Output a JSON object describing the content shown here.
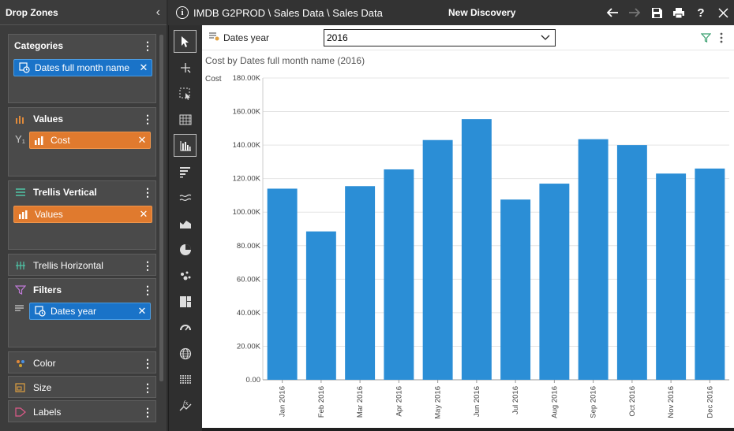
{
  "drop_zones": {
    "header": "Drop Zones",
    "categories": {
      "title": "Categories",
      "chip": "Dates full month name"
    },
    "values": {
      "title": "Values",
      "axis_mark": "Y₁",
      "chip": "Cost"
    },
    "trellis_vertical": {
      "title": "Trellis Vertical",
      "chip": "Values"
    },
    "trellis_horizontal": {
      "title": "Trellis Horizontal"
    },
    "filters": {
      "title": "Filters",
      "chip": "Dates year"
    },
    "color": {
      "title": "Color"
    },
    "size": {
      "title": "Size"
    },
    "labels": {
      "title": "Labels"
    }
  },
  "topbar": {
    "info_glyph": "i",
    "path": "IMDB G2PROD \\ Sales Data \\ Sales Data",
    "title": "New Discovery",
    "help_glyph": "?"
  },
  "filterbar": {
    "label": "Dates year",
    "selected": "2016"
  },
  "chart_title": "Cost by Dates full month name (2016)",
  "colors": {
    "bar": "#2b8ed6",
    "chip_blue": "#1a73c8",
    "chip_orange": "#e07a2e",
    "panel_bg": "#3c3c3c"
  },
  "chart_data": {
    "type": "bar",
    "ylabel": "Cost",
    "ylim": [
      0,
      180000
    ],
    "yticks": [
      "0.00",
      "20.00K",
      "40.00K",
      "60.00K",
      "80.00K",
      "100.00K",
      "120.00K",
      "140.00K",
      "160.00K",
      "180.00K"
    ],
    "ytick_values": [
      0,
      20000,
      40000,
      60000,
      80000,
      100000,
      120000,
      140000,
      160000,
      180000
    ],
    "categories": [
      "Jan 2016",
      "Feb 2016",
      "Mar 2016",
      "Apr 2016",
      "May 2016",
      "Jun 2016",
      "Jul 2016",
      "Aug 2016",
      "Sep 2016",
      "Oct 2016",
      "Nov 2016",
      "Dec 2016"
    ],
    "values": [
      114000,
      88500,
      115500,
      125500,
      143000,
      155500,
      107500,
      117000,
      143500,
      140000,
      123000,
      126000
    ],
    "grid": true
  }
}
